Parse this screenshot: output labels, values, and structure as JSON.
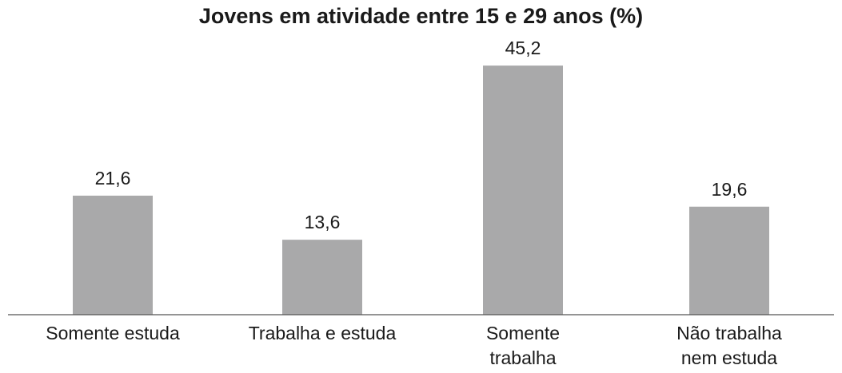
{
  "chart_data": {
    "type": "bar",
    "title": "Jovens em atividade entre 15 e 29 anos (%)",
    "categories": [
      [
        "Somente estuda"
      ],
      [
        "Trabalha e estuda"
      ],
      [
        "Somente",
        "trabalha"
      ],
      [
        "Não trabalha",
        "nem estuda"
      ]
    ],
    "values": [
      21.6,
      13.6,
      45.2,
      19.6
    ],
    "value_labels": [
      "21,6",
      "13,6",
      "45,2",
      "19,6"
    ],
    "xlabel": "",
    "ylabel": "",
    "ylim": [
      0,
      50
    ],
    "grid": false,
    "colors": {
      "bar": "#a9a9aa"
    }
  }
}
